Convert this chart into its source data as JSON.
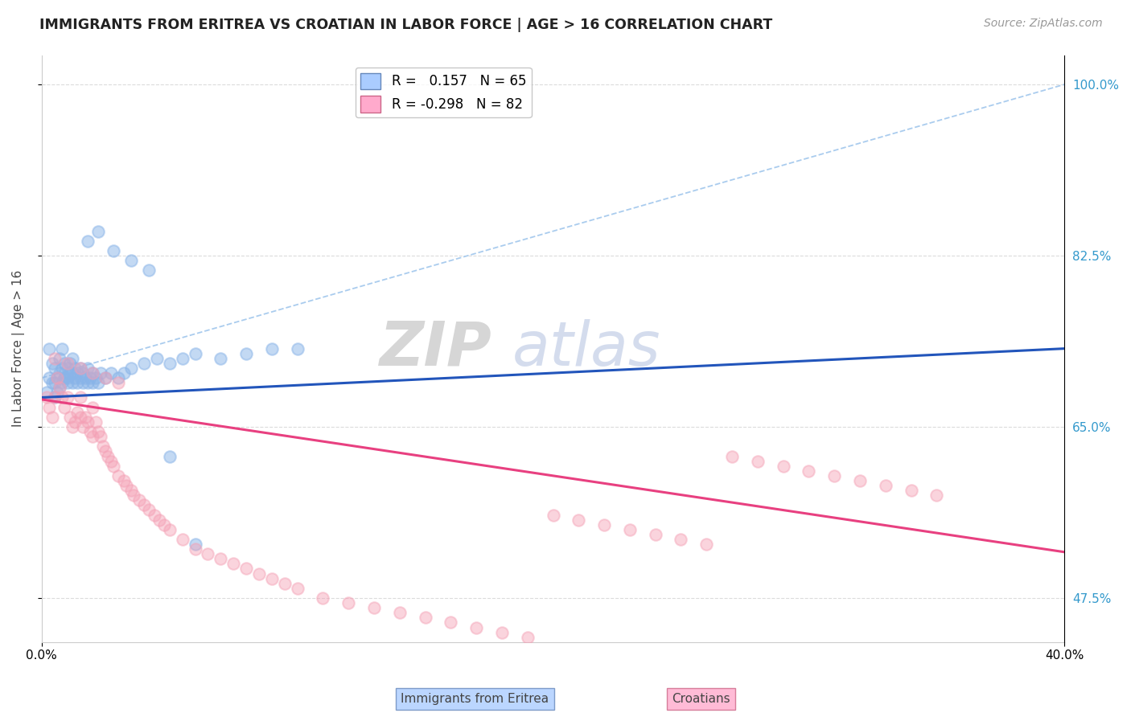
{
  "title": "IMMIGRANTS FROM ERITREA VS CROATIAN IN LABOR FORCE | AGE > 16 CORRELATION CHART",
  "source_text": "Source: ZipAtlas.com",
  "ylabel": "In Labor Force | Age > 16",
  "xlim": [
    0.0,
    0.4
  ],
  "ylim": [
    0.43,
    1.03
  ],
  "ytick_values": [
    0.475,
    0.65,
    0.825,
    1.0
  ],
  "right_ytick_labels": [
    "100.0%",
    "82.5%",
    "65.0%",
    "47.5%"
  ],
  "right_ytick_values": [
    1.0,
    0.825,
    0.65,
    0.475
  ],
  "legend_blue_label": "R =   0.157   N = 65",
  "legend_pink_label": "R = -0.298   N = 82",
  "blue_color": "#89B4E8",
  "pink_color": "#F4A0B5",
  "blue_line_color": "#2255BB",
  "pink_line_color": "#E84080",
  "dashed_line_color": "#AACCEE",
  "background_color": "#FFFFFF",
  "grid_color": "#CCCCCC",
  "blue_scatter_x": [
    0.002,
    0.003,
    0.003,
    0.004,
    0.004,
    0.005,
    0.005,
    0.005,
    0.006,
    0.006,
    0.007,
    0.007,
    0.007,
    0.008,
    0.008,
    0.008,
    0.009,
    0.009,
    0.009,
    0.01,
    0.01,
    0.01,
    0.011,
    0.011,
    0.012,
    0.012,
    0.012,
    0.013,
    0.013,
    0.014,
    0.014,
    0.015,
    0.015,
    0.016,
    0.016,
    0.017,
    0.018,
    0.018,
    0.019,
    0.02,
    0.02,
    0.021,
    0.022,
    0.023,
    0.025,
    0.027,
    0.03,
    0.032,
    0.035,
    0.04,
    0.045,
    0.05,
    0.055,
    0.06,
    0.07,
    0.08,
    0.09,
    0.1,
    0.018,
    0.022,
    0.028,
    0.035,
    0.042,
    0.05,
    0.06
  ],
  "blue_scatter_y": [
    0.685,
    0.7,
    0.73,
    0.695,
    0.715,
    0.68,
    0.695,
    0.71,
    0.685,
    0.7,
    0.69,
    0.705,
    0.72,
    0.695,
    0.71,
    0.73,
    0.7,
    0.715,
    0.7,
    0.695,
    0.71,
    0.7,
    0.705,
    0.715,
    0.695,
    0.705,
    0.72,
    0.7,
    0.71,
    0.695,
    0.705,
    0.7,
    0.71,
    0.695,
    0.705,
    0.7,
    0.695,
    0.71,
    0.7,
    0.695,
    0.705,
    0.7,
    0.695,
    0.705,
    0.7,
    0.705,
    0.7,
    0.705,
    0.71,
    0.715,
    0.72,
    0.715,
    0.72,
    0.725,
    0.72,
    0.725,
    0.73,
    0.73,
    0.84,
    0.85,
    0.83,
    0.82,
    0.81,
    0.62,
    0.53
  ],
  "pink_scatter_x": [
    0.002,
    0.003,
    0.004,
    0.005,
    0.006,
    0.007,
    0.008,
    0.009,
    0.01,
    0.011,
    0.012,
    0.013,
    0.014,
    0.015,
    0.015,
    0.016,
    0.017,
    0.018,
    0.019,
    0.02,
    0.02,
    0.021,
    0.022,
    0.023,
    0.024,
    0.025,
    0.026,
    0.027,
    0.028,
    0.03,
    0.032,
    0.033,
    0.035,
    0.036,
    0.038,
    0.04,
    0.042,
    0.044,
    0.046,
    0.048,
    0.05,
    0.055,
    0.06,
    0.065,
    0.07,
    0.075,
    0.08,
    0.085,
    0.09,
    0.095,
    0.1,
    0.11,
    0.12,
    0.13,
    0.14,
    0.15,
    0.16,
    0.17,
    0.18,
    0.19,
    0.2,
    0.21,
    0.22,
    0.23,
    0.24,
    0.25,
    0.26,
    0.27,
    0.28,
    0.29,
    0.3,
    0.31,
    0.32,
    0.33,
    0.34,
    0.35,
    0.005,
    0.01,
    0.015,
    0.02,
    0.025,
    0.03
  ],
  "pink_scatter_y": [
    0.68,
    0.67,
    0.66,
    0.68,
    0.7,
    0.69,
    0.68,
    0.67,
    0.68,
    0.66,
    0.65,
    0.655,
    0.665,
    0.66,
    0.68,
    0.65,
    0.66,
    0.655,
    0.645,
    0.64,
    0.67,
    0.655,
    0.645,
    0.64,
    0.63,
    0.625,
    0.62,
    0.615,
    0.61,
    0.6,
    0.595,
    0.59,
    0.585,
    0.58,
    0.575,
    0.57,
    0.565,
    0.56,
    0.555,
    0.55,
    0.545,
    0.535,
    0.525,
    0.52,
    0.515,
    0.51,
    0.505,
    0.5,
    0.495,
    0.49,
    0.485,
    0.475,
    0.47,
    0.465,
    0.46,
    0.455,
    0.45,
    0.445,
    0.44,
    0.435,
    0.56,
    0.555,
    0.55,
    0.545,
    0.54,
    0.535,
    0.53,
    0.62,
    0.615,
    0.61,
    0.605,
    0.6,
    0.595,
    0.59,
    0.585,
    0.58,
    0.72,
    0.715,
    0.71,
    0.705,
    0.7,
    0.695
  ],
  "blue_trend_x0": 0.0,
  "blue_trend_x1": 0.4,
  "blue_trend_y0": 0.68,
  "blue_trend_y1": 0.73,
  "pink_trend_x0": 0.0,
  "pink_trend_x1": 0.4,
  "pink_trend_y0": 0.678,
  "pink_trend_y1": 0.522,
  "dashed_line_x": [
    0.0,
    0.4
  ],
  "dashed_line_y": [
    0.7,
    1.0
  ]
}
